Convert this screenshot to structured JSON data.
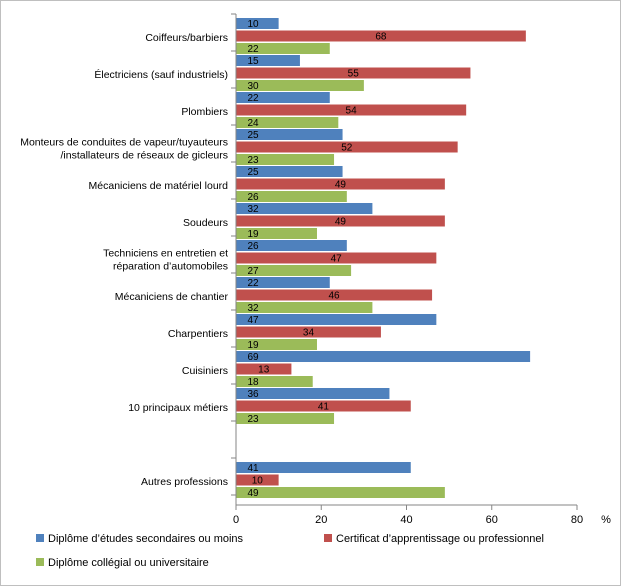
{
  "chart_data": {
    "type": "bar",
    "orientation": "horizontal",
    "categories": [
      [
        "Coiffeurs/barbiers"
      ],
      [
        "Électriciens (sauf industriels)"
      ],
      [
        "Plombiers"
      ],
      [
        "Monteurs de conduites de vapeur/tuyauteurs",
        "/installateurs de réseaux de gicleurs"
      ],
      [
        "Mécaniciens de matériel lourd"
      ],
      [
        "Soudeurs"
      ],
      [
        "Techniciens en entretien et",
        "réparation d’automobiles"
      ],
      [
        "Mécaniciens de chantier"
      ],
      [
        "Charpentiers"
      ],
      [
        "Cuisiniers"
      ],
      [
        "10 principaux métiers"
      ],
      [
        ""
      ],
      [
        "Autres professions"
      ]
    ],
    "series": [
      {
        "name": "Diplôme d’études secondaires ou moins",
        "color": "#4F81BD",
        "values": [
          10,
          15,
          22,
          25,
          25,
          32,
          26,
          22,
          47,
          69,
          36,
          null,
          41
        ]
      },
      {
        "name": "Certificat d’apprentissage ou professionnel",
        "color": "#C0504D",
        "values": [
          68,
          55,
          54,
          52,
          49,
          49,
          47,
          46,
          34,
          13,
          41,
          null,
          10
        ]
      },
      {
        "name": "Diplôme collégial ou universitaire",
        "color": "#9BBB59",
        "values": [
          22,
          30,
          24,
          23,
          26,
          19,
          27,
          32,
          19,
          18,
          23,
          null,
          49
        ]
      }
    ],
    "xlim": [
      0,
      80
    ],
    "xticks": [
      0,
      20,
      40,
      60,
      80
    ],
    "unit_label": "%",
    "grid": false,
    "legend_position": "bottom"
  }
}
